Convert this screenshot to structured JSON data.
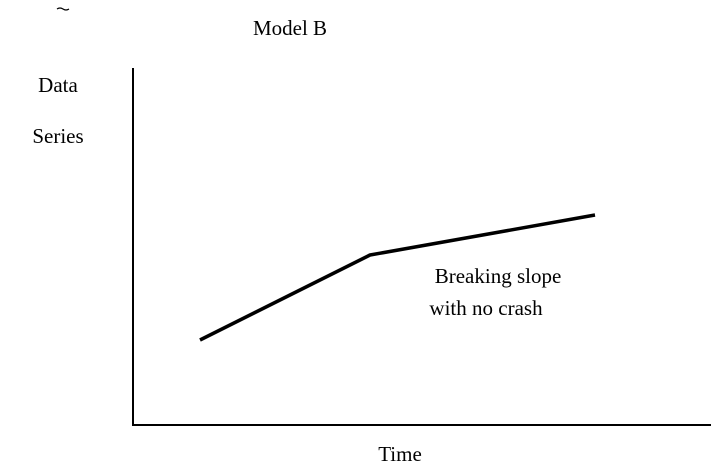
{
  "title": "Model B",
  "y_axis_label": [
    "Data",
    "Series"
  ],
  "x_axis_label": "Time",
  "annotation": [
    "Breaking slope",
    "with no crash"
  ]
}
